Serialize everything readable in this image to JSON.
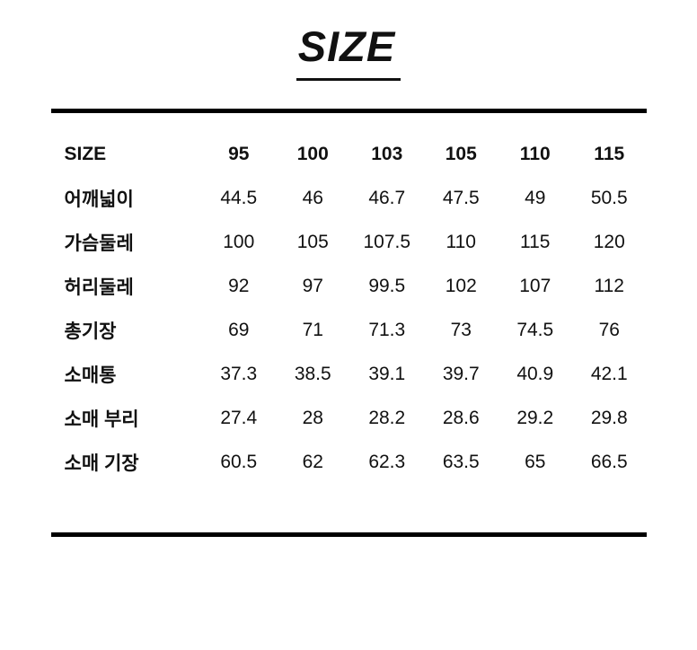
{
  "page": {
    "title": "SIZE"
  },
  "colors": {
    "text": "#111111",
    "rule": "#000000",
    "background": "#ffffff"
  },
  "table": {
    "header": [
      "SIZE",
      "95",
      "100",
      "103",
      "105",
      "110",
      "115"
    ],
    "rows": [
      {
        "label": "어깨넓이",
        "values": [
          "44.5",
          "46",
          "46.7",
          "47.5",
          "49",
          "50.5"
        ]
      },
      {
        "label": "가슴둘레",
        "values": [
          "100",
          "105",
          "107.5",
          "110",
          "115",
          "120"
        ]
      },
      {
        "label": "허리둘레",
        "values": [
          "92",
          "97",
          "99.5",
          "102",
          "107",
          "112"
        ]
      },
      {
        "label": "총기장",
        "values": [
          "69",
          "71",
          "71.3",
          "73",
          "74.5",
          "76"
        ]
      },
      {
        "label": "소매통",
        "values": [
          "37.3",
          "38.5",
          "39.1",
          "39.7",
          "40.9",
          "42.1"
        ]
      },
      {
        "label": "소매 부리",
        "values": [
          "27.4",
          "28",
          "28.2",
          "28.6",
          "29.2",
          "29.8"
        ]
      },
      {
        "label": "소매 기장",
        "values": [
          "60.5",
          "62",
          "62.3",
          "63.5",
          "65",
          "66.5"
        ]
      }
    ]
  }
}
